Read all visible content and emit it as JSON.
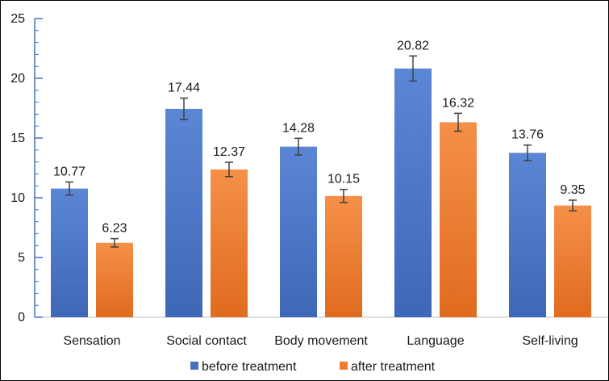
{
  "chart_data": {
    "type": "bar",
    "categories": [
      "Sensation",
      "Social contact",
      "Body movement",
      "Language",
      "Self-living"
    ],
    "series": [
      {
        "name": "before treatment",
        "color": "#4472C4",
        "values": [
          10.77,
          17.44,
          14.28,
          20.82,
          13.76
        ],
        "errors": [
          0.55,
          0.9,
          0.7,
          1.05,
          0.65
        ],
        "labels": [
          "10.77",
          "17.44",
          "14.28",
          "20.82",
          "13.76"
        ]
      },
      {
        "name": "after treatment",
        "color": "#ED7D31",
        "values": [
          6.23,
          12.37,
          10.15,
          16.32,
          9.35
        ],
        "errors": [
          0.35,
          0.6,
          0.55,
          0.75,
          0.45
        ],
        "labels": [
          "6.23",
          "12.37",
          "10.15",
          "16.32",
          "9.35"
        ]
      }
    ],
    "yticks": [
      "0",
      "5",
      "10",
      "15",
      "20",
      "25"
    ],
    "ylim": [
      0,
      25
    ],
    "axis_color": "#4472C4",
    "grid": false,
    "legend_position": "bottom"
  }
}
